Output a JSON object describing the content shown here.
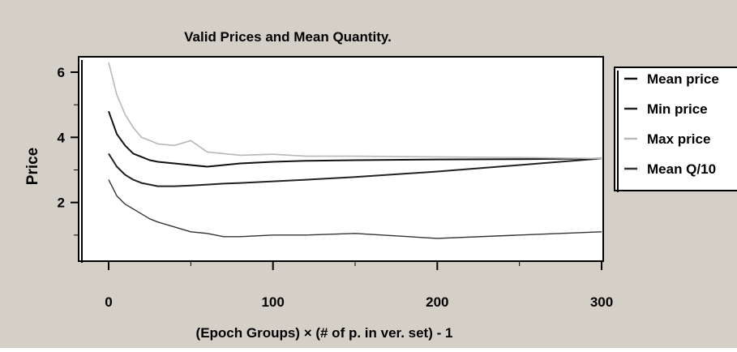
{
  "chart_data": {
    "type": "line",
    "title": "Valid Prices and Mean Quantity.",
    "xlabel": "(Epoch Groups) × (# of p. in ver. set) - 1",
    "ylabel": "Price",
    "xlim": [
      0,
      300
    ],
    "ylim": [
      0,
      6.4
    ],
    "x_ticks": [
      0,
      100,
      200,
      300
    ],
    "y_ticks": [
      2,
      4,
      6
    ],
    "grid": false,
    "legend_position": "right, outside plot",
    "colors": {
      "background": "#d4d0c8",
      "plot_area": "#ffffff",
      "mean_price": "#111111",
      "min_price": "#222222",
      "max_price": "#b8b8b8",
      "mean_q": "#333333"
    },
    "x": [
      0,
      5,
      10,
      15,
      20,
      25,
      30,
      40,
      50,
      60,
      70,
      80,
      100,
      120,
      150,
      200,
      250,
      300
    ],
    "series": [
      {
        "name": "Mean price",
        "values": [
          4.8,
          4.1,
          3.75,
          3.5,
          3.4,
          3.3,
          3.25,
          3.2,
          3.15,
          3.1,
          3.15,
          3.2,
          3.25,
          3.28,
          3.3,
          3.32,
          3.33,
          3.35
        ]
      },
      {
        "name": "Min price",
        "values": [
          3.5,
          3.1,
          2.85,
          2.7,
          2.6,
          2.55,
          2.5,
          2.5,
          2.52,
          2.55,
          2.58,
          2.6,
          2.65,
          2.7,
          2.78,
          2.95,
          3.15,
          3.35
        ]
      },
      {
        "name": "Max price",
        "values": [
          6.3,
          5.3,
          4.7,
          4.3,
          4.0,
          3.9,
          3.8,
          3.75,
          3.9,
          3.55,
          3.5,
          3.45,
          3.48,
          3.42,
          3.42,
          3.4,
          3.38,
          3.35
        ]
      },
      {
        "name": "Mean Q/10",
        "values": [
          2.7,
          2.2,
          1.95,
          1.8,
          1.65,
          1.5,
          1.4,
          1.25,
          1.1,
          1.05,
          0.95,
          0.95,
          1.0,
          1.0,
          1.05,
          0.9,
          1.0,
          1.1
        ]
      }
    ]
  }
}
